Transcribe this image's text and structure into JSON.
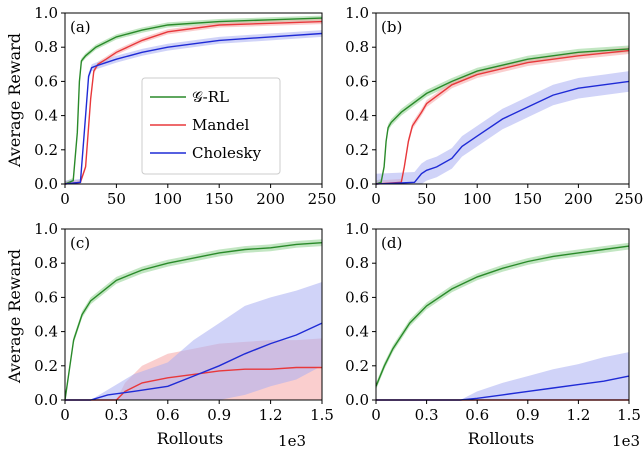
{
  "figure": {
    "ylabel_top": "Average Reward",
    "ylabel_bottom": "Average Reward",
    "xlabel_bottom_left": "Rollouts",
    "xlabel_bottom_right": "Rollouts",
    "sci_bottom_left": "1e3",
    "sci_bottom_right": "1e3"
  },
  "legend": {
    "items": [
      {
        "label": "𝒢-RL",
        "color": "#2a8a2a"
      },
      {
        "label": "Mandel",
        "color": "#e8383b"
      },
      {
        "label": "Cholesky",
        "color": "#1f2bd6"
      }
    ]
  },
  "chart_data": [
    {
      "type": "line",
      "panel": "(a)",
      "xlim": [
        0,
        250
      ],
      "ylim": [
        0,
        1
      ],
      "xticks": [
        "0",
        "50",
        "100",
        "150",
        "200",
        "250"
      ],
      "yticks": [
        "0.0",
        "0.2",
        "0.4",
        "0.6",
        "0.8",
        "1.0"
      ],
      "series": [
        {
          "name": "𝒢-RL",
          "color": "#2a8a2a",
          "band": "#8fd28f",
          "x": [
            0,
            8,
            12,
            14,
            16,
            20,
            30,
            50,
            75,
            100,
            150,
            200,
            250
          ],
          "y": [
            0,
            0.02,
            0.3,
            0.6,
            0.72,
            0.75,
            0.8,
            0.86,
            0.9,
            0.93,
            0.95,
            0.96,
            0.97
          ],
          "err": 0.015
        },
        {
          "name": "Mandel",
          "color": "#e8383b",
          "band": "#f5a5a6",
          "x": [
            0,
            15,
            20,
            25,
            28,
            32,
            40,
            50,
            75,
            100,
            150,
            200,
            250
          ],
          "y": [
            0,
            0.01,
            0.1,
            0.5,
            0.66,
            0.7,
            0.73,
            0.77,
            0.84,
            0.89,
            0.93,
            0.94,
            0.95
          ],
          "err": 0.015
        },
        {
          "name": "Cholesky",
          "color": "#1f2bd6",
          "band": "#a9aff2",
          "x": [
            0,
            15,
            20,
            23,
            26,
            30,
            40,
            50,
            75,
            100,
            150,
            200,
            250
          ],
          "y": [
            0,
            0.01,
            0.4,
            0.63,
            0.68,
            0.69,
            0.71,
            0.73,
            0.77,
            0.8,
            0.84,
            0.86,
            0.88
          ],
          "err": 0.02
        }
      ]
    },
    {
      "type": "line",
      "panel": "(b)",
      "xlim": [
        0,
        250
      ],
      "ylim": [
        0,
        1
      ],
      "xticks": [
        "0",
        "50",
        "100",
        "150",
        "200",
        "250"
      ],
      "yticks": [
        "0.0",
        "0.2",
        "0.4",
        "0.6",
        "0.8",
        "1.0"
      ],
      "series": [
        {
          "name": "𝒢-RL",
          "color": "#2a8a2a",
          "band": "#8fd28f",
          "x": [
            0,
            5,
            8,
            10,
            12,
            15,
            25,
            50,
            75,
            100,
            150,
            200,
            250
          ],
          "y": [
            0,
            0.01,
            0.1,
            0.25,
            0.33,
            0.36,
            0.42,
            0.53,
            0.6,
            0.66,
            0.73,
            0.77,
            0.79
          ],
          "err": 0.02
        },
        {
          "name": "Mandel",
          "color": "#e8383b",
          "band": "#f5a5a6",
          "x": [
            0,
            25,
            28,
            32,
            36,
            45,
            50,
            75,
            100,
            150,
            200,
            250
          ],
          "y": [
            0,
            0.01,
            0.1,
            0.25,
            0.34,
            0.42,
            0.47,
            0.58,
            0.64,
            0.71,
            0.75,
            0.78
          ],
          "err": 0.02
        },
        {
          "name": "Cholesky",
          "color": "#1f2bd6",
          "band": "#a9aff2",
          "x": [
            0,
            38,
            45,
            50,
            60,
            75,
            85,
            100,
            125,
            150,
            175,
            200,
            225,
            250
          ],
          "y": [
            0,
            0.01,
            0.06,
            0.08,
            0.1,
            0.15,
            0.22,
            0.28,
            0.38,
            0.45,
            0.52,
            0.56,
            0.58,
            0.6
          ],
          "err": 0.06
        }
      ]
    },
    {
      "type": "line",
      "panel": "(c)",
      "xlim": [
        0,
        1.5
      ],
      "ylim": [
        0,
        1
      ],
      "xticks": [
        "0",
        "0.3",
        "0.6",
        "0.9",
        "1.2",
        "1.5"
      ],
      "yticks": [
        "0.0",
        "0.2",
        "0.4",
        "0.6",
        "0.8",
        "1.0"
      ],
      "series": [
        {
          "name": "𝒢-RL",
          "color": "#2a8a2a",
          "band": "#8fd28f",
          "x": [
            0,
            0.05,
            0.1,
            0.15,
            0.3,
            0.45,
            0.6,
            0.75,
            0.9,
            1.05,
            1.2,
            1.35,
            1.5
          ],
          "y": [
            0,
            0.35,
            0.5,
            0.58,
            0.7,
            0.76,
            0.8,
            0.83,
            0.86,
            0.88,
            0.89,
            0.91,
            0.92
          ],
          "err": 0.02
        },
        {
          "name": "Mandel",
          "color": "#e8383b",
          "band": "#f5a5a6",
          "x": [
            0,
            0.3,
            0.35,
            0.45,
            0.6,
            0.75,
            0.9,
            1.05,
            1.2,
            1.35,
            1.5
          ],
          "y": [
            0,
            0,
            0.05,
            0.1,
            0.13,
            0.15,
            0.17,
            0.18,
            0.18,
            0.19,
            0.19
          ],
          "lo": [
            0,
            0,
            0,
            0,
            0,
            0,
            0,
            0,
            0,
            0,
            0
          ],
          "hi": [
            0,
            0,
            0.1,
            0.2,
            0.27,
            0.3,
            0.33,
            0.34,
            0.35,
            0.35,
            0.36
          ]
        },
        {
          "name": "Cholesky",
          "color": "#1f2bd6",
          "band": "#a9aff2",
          "x": [
            0,
            0.15,
            0.25,
            0.4,
            0.6,
            0.75,
            0.9,
            1.05,
            1.2,
            1.35,
            1.5
          ],
          "y": [
            0,
            0,
            0.03,
            0.05,
            0.08,
            0.14,
            0.2,
            0.27,
            0.33,
            0.38,
            0.45
          ],
          "lo": [
            0,
            0,
            0,
            0,
            0,
            0,
            0,
            0.03,
            0.08,
            0.12,
            0.2
          ],
          "hi": [
            0,
            0,
            0.06,
            0.15,
            0.22,
            0.35,
            0.45,
            0.55,
            0.6,
            0.64,
            0.69
          ]
        }
      ]
    },
    {
      "type": "line",
      "panel": "(d)",
      "xlim": [
        0,
        1.5
      ],
      "ylim": [
        0,
        1
      ],
      "xticks": [
        "0",
        "0.3",
        "0.6",
        "0.9",
        "1.2",
        "1.5"
      ],
      "yticks": [
        "0.0",
        "0.2",
        "0.4",
        "0.6",
        "0.8",
        "1.0"
      ],
      "series": [
        {
          "name": "𝒢-RL",
          "color": "#2a8a2a",
          "band": "#8fd28f",
          "x": [
            0,
            0.05,
            0.1,
            0.2,
            0.3,
            0.45,
            0.6,
            0.75,
            0.9,
            1.05,
            1.2,
            1.35,
            1.5
          ],
          "y": [
            0.08,
            0.2,
            0.3,
            0.45,
            0.55,
            0.65,
            0.72,
            0.77,
            0.81,
            0.84,
            0.86,
            0.88,
            0.9
          ],
          "err": 0.02
        },
        {
          "name": "Mandel",
          "color": "#e8383b",
          "band": "#f5a5a6",
          "x": [
            0,
            1.5
          ],
          "y": [
            0,
            0
          ],
          "err": 0
        },
        {
          "name": "Cholesky",
          "color": "#1f2bd6",
          "band": "#a9aff2",
          "x": [
            0,
            0.5,
            0.6,
            0.75,
            0.9,
            1.05,
            1.2,
            1.35,
            1.5
          ],
          "y": [
            0,
            0,
            0.01,
            0.03,
            0.05,
            0.07,
            0.09,
            0.11,
            0.14
          ],
          "lo": [
            0,
            0,
            0,
            0,
            0,
            0,
            0,
            0,
            0
          ],
          "hi": [
            0,
            0,
            0.05,
            0.1,
            0.14,
            0.18,
            0.21,
            0.25,
            0.28
          ]
        }
      ]
    }
  ]
}
